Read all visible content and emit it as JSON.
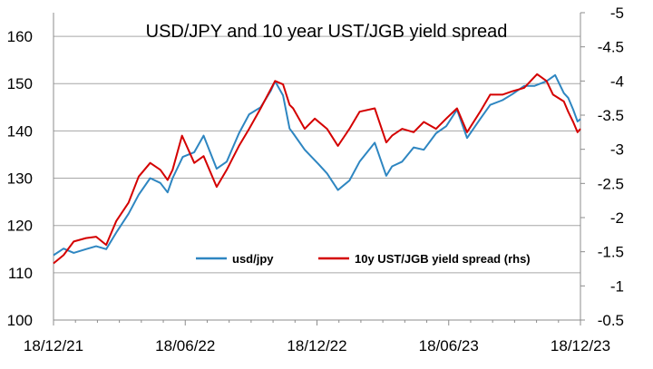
{
  "chart_data": {
    "type": "line",
    "title": "USD/JPY and 10 year UST/JGB yield spread",
    "x_ticks": [
      "18/12/21",
      "18/06/22",
      "18/12/22",
      "18/06/23",
      "18/12/23"
    ],
    "x_range": [
      "2021-12-18",
      "2023-12-18"
    ],
    "y_left": {
      "ticks": [
        "100",
        "110",
        "120",
        "130",
        "140",
        "150",
        "160"
      ],
      "range": [
        100,
        165
      ]
    },
    "y_right": {
      "ticks": [
        "-0.5",
        "-1",
        "-1.5",
        "-2",
        "-2.5",
        "-3",
        "-3.5",
        "-4",
        "-4.5",
        "-5"
      ],
      "range": [
        -0.5,
        -5
      ],
      "inverted": true
    },
    "grid": true,
    "legend_position": "bottom-center",
    "series": [
      {
        "name": "usd/jpy",
        "axis": "left",
        "color": "#2e86c1",
        "points": [
          [
            "2021-12-18",
            113.7
          ],
          [
            "2022-01-01",
            115.1
          ],
          [
            "2022-01-15",
            114.2
          ],
          [
            "2022-02-01",
            115.0
          ],
          [
            "2022-02-15",
            115.6
          ],
          [
            "2022-03-01",
            115.0
          ],
          [
            "2022-03-15",
            118.5
          ],
          [
            "2022-04-01",
            122.5
          ],
          [
            "2022-04-15",
            126.5
          ],
          [
            "2022-05-01",
            130.0
          ],
          [
            "2022-05-15",
            129.0
          ],
          [
            "2022-05-25",
            127.0
          ],
          [
            "2022-06-01",
            130.0
          ],
          [
            "2022-06-15",
            134.5
          ],
          [
            "2022-07-01",
            135.5
          ],
          [
            "2022-07-14",
            139.0
          ],
          [
            "2022-08-01",
            132.0
          ],
          [
            "2022-08-15",
            133.5
          ],
          [
            "2022-09-01",
            139.5
          ],
          [
            "2022-09-15",
            143.5
          ],
          [
            "2022-10-01",
            145.0
          ],
          [
            "2022-10-15",
            148.5
          ],
          [
            "2022-10-21",
            150.5
          ],
          [
            "2022-11-01",
            147.5
          ],
          [
            "2022-11-10",
            140.5
          ],
          [
            "2022-11-15",
            139.5
          ],
          [
            "2022-12-01",
            136.0
          ],
          [
            "2022-12-20",
            133.0
          ],
          [
            "2023-01-01",
            131.0
          ],
          [
            "2023-01-16",
            127.5
          ],
          [
            "2023-02-01",
            129.5
          ],
          [
            "2023-02-15",
            133.5
          ],
          [
            "2023-03-08",
            137.5
          ],
          [
            "2023-03-24",
            130.5
          ],
          [
            "2023-04-01",
            132.5
          ],
          [
            "2023-04-15",
            133.5
          ],
          [
            "2023-05-01",
            136.5
          ],
          [
            "2023-05-15",
            136.0
          ],
          [
            "2023-06-01",
            139.5
          ],
          [
            "2023-06-15",
            141.0
          ],
          [
            "2023-06-30",
            144.5
          ],
          [
            "2023-07-14",
            138.5
          ],
          [
            "2023-08-01",
            142.5
          ],
          [
            "2023-08-15",
            145.5
          ],
          [
            "2023-09-01",
            146.5
          ],
          [
            "2023-09-15",
            147.8
          ],
          [
            "2023-10-01",
            149.5
          ],
          [
            "2023-10-15",
            149.5
          ],
          [
            "2023-11-01",
            150.5
          ],
          [
            "2023-11-13",
            151.8
          ],
          [
            "2023-11-25",
            148.0
          ],
          [
            "2023-12-01",
            147.0
          ],
          [
            "2023-12-08",
            144.5
          ],
          [
            "2023-12-14",
            142.0
          ],
          [
            "2023-12-18",
            142.5
          ]
        ]
      },
      {
        "name": "10y UST/JGB yield spread (rhs)",
        "axis": "right",
        "color": "#d40000",
        "points": [
          [
            "2021-12-18",
            -1.33
          ],
          [
            "2022-01-01",
            -1.45
          ],
          [
            "2022-01-15",
            -1.65
          ],
          [
            "2022-02-01",
            -1.7
          ],
          [
            "2022-02-15",
            -1.72
          ],
          [
            "2022-03-01",
            -1.6
          ],
          [
            "2022-03-15",
            -1.95
          ],
          [
            "2022-04-01",
            -2.22
          ],
          [
            "2022-04-15",
            -2.6
          ],
          [
            "2022-05-01",
            -2.8
          ],
          [
            "2022-05-15",
            -2.7
          ],
          [
            "2022-05-25",
            -2.55
          ],
          [
            "2022-06-01",
            -2.7
          ],
          [
            "2022-06-14",
            -3.2
          ],
          [
            "2022-07-01",
            -2.8
          ],
          [
            "2022-07-14",
            -2.9
          ],
          [
            "2022-08-01",
            -2.45
          ],
          [
            "2022-08-15",
            -2.7
          ],
          [
            "2022-09-01",
            -3.05
          ],
          [
            "2022-09-15",
            -3.3
          ],
          [
            "2022-10-01",
            -3.6
          ],
          [
            "2022-10-21",
            -4.0
          ],
          [
            "2022-11-01",
            -3.95
          ],
          [
            "2022-11-10",
            -3.65
          ],
          [
            "2022-11-15",
            -3.6
          ],
          [
            "2022-12-01",
            -3.3
          ],
          [
            "2022-12-15",
            -3.45
          ],
          [
            "2023-01-01",
            -3.3
          ],
          [
            "2023-01-16",
            -3.05
          ],
          [
            "2023-02-01",
            -3.3
          ],
          [
            "2023-02-15",
            -3.55
          ],
          [
            "2023-03-08",
            -3.6
          ],
          [
            "2023-03-24",
            -3.1
          ],
          [
            "2023-04-01",
            -3.2
          ],
          [
            "2023-04-15",
            -3.3
          ],
          [
            "2023-05-01",
            -3.25
          ],
          [
            "2023-05-15",
            -3.4
          ],
          [
            "2023-06-01",
            -3.3
          ],
          [
            "2023-06-15",
            -3.45
          ],
          [
            "2023-06-30",
            -3.6
          ],
          [
            "2023-07-14",
            -3.25
          ],
          [
            "2023-08-01",
            -3.55
          ],
          [
            "2023-08-15",
            -3.8
          ],
          [
            "2023-09-01",
            -3.8
          ],
          [
            "2023-09-15",
            -3.85
          ],
          [
            "2023-10-01",
            -3.9
          ],
          [
            "2023-10-19",
            -4.1
          ],
          [
            "2023-11-01",
            -4.0
          ],
          [
            "2023-11-10",
            -3.8
          ],
          [
            "2023-11-25",
            -3.7
          ],
          [
            "2023-12-01",
            -3.55
          ],
          [
            "2023-12-08",
            -3.4
          ],
          [
            "2023-12-14",
            -3.25
          ],
          [
            "2023-12-18",
            -3.3
          ]
        ]
      }
    ]
  }
}
